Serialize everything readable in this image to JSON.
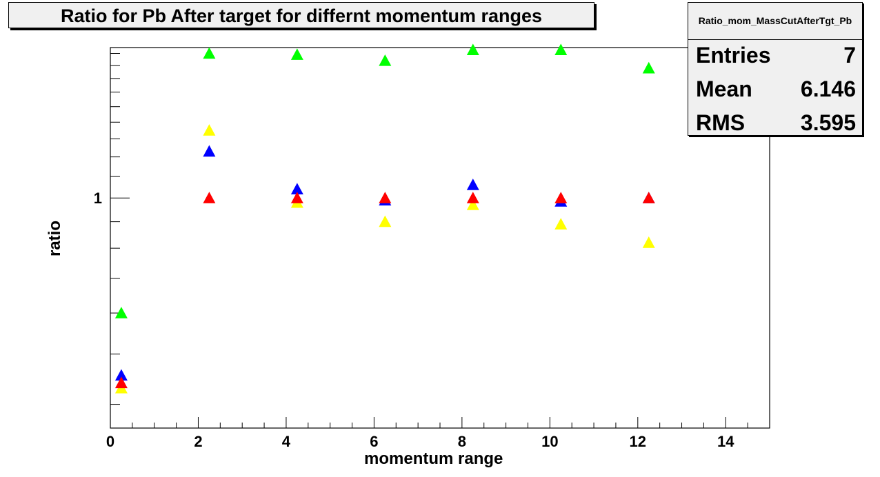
{
  "chart_data": {
    "type": "scatter",
    "title": "Ratio for Pb After target for differnt momentum ranges",
    "xlabel": "momentum range",
    "ylabel": "ratio",
    "xlim": [
      0,
      15
    ],
    "ylim": [
      0.36,
      1.95
    ],
    "y_scale": "log",
    "x_ticks": [
      0,
      2,
      4,
      6,
      8,
      10,
      12,
      14
    ],
    "y_tick_labels": [
      {
        "value": 1,
        "label": "1"
      }
    ],
    "grid": false,
    "marker": "triangle-up",
    "series": [
      {
        "color": "#00ff00",
        "x": [
          0.25,
          2.25,
          4.25,
          6.25,
          8.25,
          10.25,
          12.25
        ],
        "y": [
          0.6,
          1.9,
          1.89,
          1.84,
          1.93,
          1.93,
          1.78
        ]
      },
      {
        "color": "#ffff00",
        "x": [
          0.25,
          2.25,
          4.25,
          6.25,
          8.25,
          10.25,
          12.25
        ],
        "y": [
          0.43,
          1.35,
          0.98,
          0.9,
          0.97,
          0.89,
          0.82
        ]
      },
      {
        "color": "#0000ff",
        "x": [
          0.25,
          2.25,
          4.25,
          6.25,
          8.25,
          10.25,
          12.25
        ],
        "y": [
          0.455,
          1.23,
          1.04,
          0.99,
          1.06,
          0.985,
          1.0
        ]
      },
      {
        "color": "#ff0000",
        "x": [
          0.25,
          2.25,
          4.25,
          6.25,
          8.25,
          10.25,
          12.25
        ],
        "y": [
          0.44,
          1.0,
          1.0,
          1.0,
          1.0,
          1.0,
          1.0
        ]
      }
    ]
  },
  "stats": {
    "name": "Ratio_mom_MassCutAfterTgt_Pb",
    "entries_label": "Entries",
    "entries_value": "7",
    "mean_label": "Mean",
    "mean_value": "6.146",
    "rms_label": "RMS",
    "rms_value": "3.595"
  }
}
